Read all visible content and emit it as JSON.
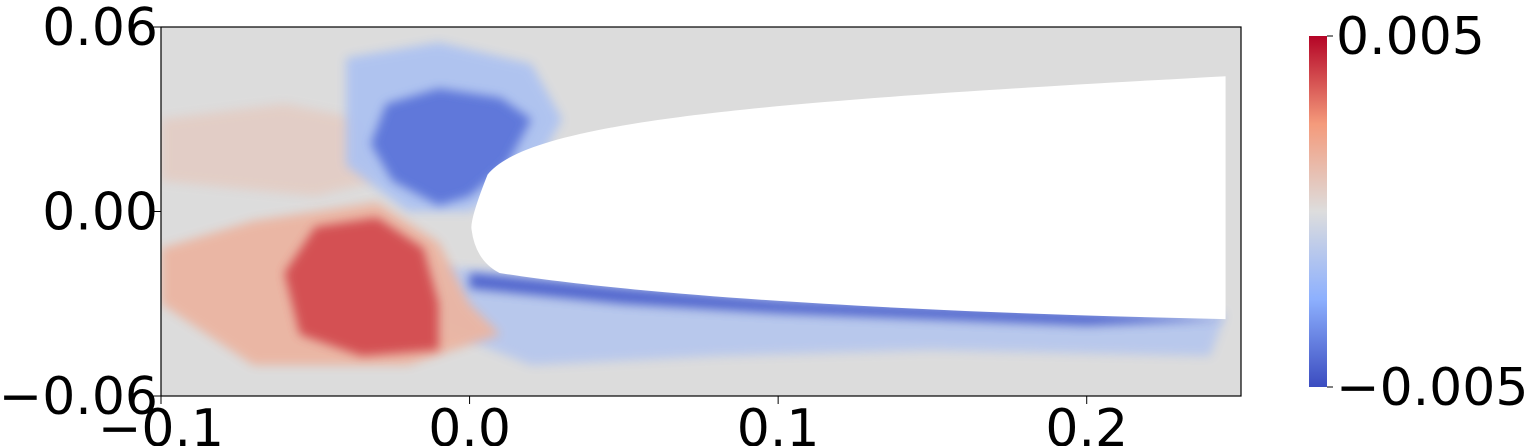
{
  "chart_data": {
    "type": "heatmap",
    "title": "",
    "xlabel": "",
    "ylabel": "",
    "xlim": [
      -0.1,
      0.25
    ],
    "ylim": [
      -0.06,
      0.06
    ],
    "x_ticks": [
      {
        "value": -0.1,
        "label": "−0.1"
      },
      {
        "value": 0.0,
        "label": "0.0"
      },
      {
        "value": 0.1,
        "label": "0.1"
      },
      {
        "value": 0.2,
        "label": "0.2"
      }
    ],
    "y_ticks": [
      {
        "value": 0.06,
        "label": "0.06"
      },
      {
        "value": 0.0,
        "label": "0.00"
      },
      {
        "value": -0.06,
        "label": "−0.06"
      }
    ],
    "colorbar": {
      "min": -0.005,
      "max": 0.005,
      "colormap": "coolwarm",
      "ticks": [
        {
          "value": 0.005,
          "label": "0.005"
        },
        {
          "value": -0.005,
          "label": "−0.005"
        }
      ]
    },
    "background_color": "#dcdcdc",
    "airfoil_color": "#ffffff",
    "regions": [
      {
        "name": "negative-upper-leading-edge",
        "sign": "negative",
        "peak": -0.004,
        "points": [
          [
            -0.027,
            0.035
          ],
          [
            -0.01,
            0.04
          ],
          [
            0.01,
            0.037
          ],
          [
            0.02,
            0.03
          ],
          [
            0.012,
            0.015
          ],
          [
            0.0,
            0.005
          ],
          [
            -0.01,
            0.002
          ],
          [
            -0.025,
            0.01
          ],
          [
            -0.032,
            0.022
          ]
        ]
      },
      {
        "name": "negative-upper-halo",
        "sign": "negative",
        "peak": -0.0015,
        "points": [
          [
            -0.04,
            0.05
          ],
          [
            -0.01,
            0.055
          ],
          [
            0.02,
            0.048
          ],
          [
            0.03,
            0.03
          ],
          [
            0.02,
            0.012
          ],
          [
            0.0,
            0.0
          ],
          [
            -0.02,
            0.0
          ],
          [
            -0.04,
            0.015
          ]
        ]
      },
      {
        "name": "positive-lower-leading-edge",
        "sign": "positive",
        "peak": 0.0038,
        "points": [
          [
            -0.05,
            -0.005
          ],
          [
            -0.03,
            -0.002
          ],
          [
            -0.015,
            -0.012
          ],
          [
            -0.01,
            -0.03
          ],
          [
            -0.01,
            -0.045
          ],
          [
            -0.035,
            -0.047
          ],
          [
            -0.055,
            -0.04
          ],
          [
            -0.06,
            -0.02
          ]
        ]
      },
      {
        "name": "positive-lower-halo",
        "sign": "positive",
        "peak": 0.0015,
        "points": [
          [
            -0.1,
            -0.012
          ],
          [
            -0.07,
            -0.003
          ],
          [
            -0.03,
            0.003
          ],
          [
            -0.01,
            -0.01
          ],
          [
            0.0,
            -0.03
          ],
          [
            0.01,
            -0.04
          ],
          [
            -0.02,
            -0.05
          ],
          [
            -0.07,
            -0.05
          ],
          [
            -0.1,
            -0.03
          ]
        ]
      },
      {
        "name": "positive-upper-faint",
        "sign": "positive",
        "peak": 0.0006,
        "points": [
          [
            -0.1,
            0.03
          ],
          [
            -0.06,
            0.035
          ],
          [
            -0.035,
            0.03
          ],
          [
            -0.03,
            0.01
          ],
          [
            -0.05,
            0.005
          ],
          [
            -0.1,
            0.01
          ]
        ]
      },
      {
        "name": "negative-lower-shear-layer",
        "sign": "negative",
        "peak": -0.0045,
        "points": [
          [
            0.0,
            -0.02
          ],
          [
            0.05,
            -0.025
          ],
          [
            0.1,
            -0.029
          ],
          [
            0.15,
            -0.031
          ],
          [
            0.2,
            -0.033
          ],
          [
            0.245,
            -0.035
          ],
          [
            0.2,
            -0.037
          ],
          [
            0.15,
            -0.035
          ],
          [
            0.1,
            -0.033
          ],
          [
            0.05,
            -0.03
          ],
          [
            0.0,
            -0.025
          ]
        ]
      },
      {
        "name": "negative-wake-halo",
        "sign": "negative",
        "peak": -0.0012,
        "points": [
          [
            -0.01,
            -0.018
          ],
          [
            0.05,
            -0.022
          ],
          [
            0.12,
            -0.027
          ],
          [
            0.2,
            -0.031
          ],
          [
            0.245,
            -0.033
          ],
          [
            0.24,
            -0.047
          ],
          [
            0.15,
            -0.045
          ],
          [
            0.08,
            -0.047
          ],
          [
            0.02,
            -0.05
          ],
          [
            -0.01,
            -0.038
          ]
        ]
      }
    ],
    "airfoil": {
      "leading_edge_x": 0.0,
      "leading_edge_y": -0.004,
      "trailing_x": 0.245,
      "upper_y": 0.044,
      "lower_y": -0.035
    }
  }
}
